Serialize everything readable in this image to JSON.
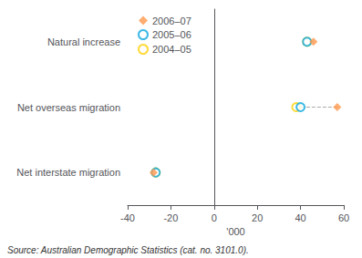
{
  "chart_data": {
    "type": "scatter",
    "orientation": "horizontal",
    "categories": [
      "Natural increase",
      "Net overseas migration",
      "Net interstate migration"
    ],
    "series": [
      {
        "name": "2006–07",
        "marker": "diamond",
        "values": [
          46,
          57,
          -28
        ]
      },
      {
        "name": "2005–06",
        "marker": "open_circle",
        "values": [
          43,
          40,
          -27
        ]
      },
      {
        "name": "2004–05",
        "marker": "open_circle",
        "values": [
          43,
          38,
          -27
        ]
      }
    ],
    "xlabel": "'000",
    "xlim": [
      -40,
      60
    ],
    "xticks": [
      -40,
      -20,
      0,
      20,
      40,
      60
    ],
    "grid": false,
    "legend": "upper left",
    "annotations": [
      "Source: Australian Demographic Statistics (cat. no. 3101.0)."
    ]
  }
}
